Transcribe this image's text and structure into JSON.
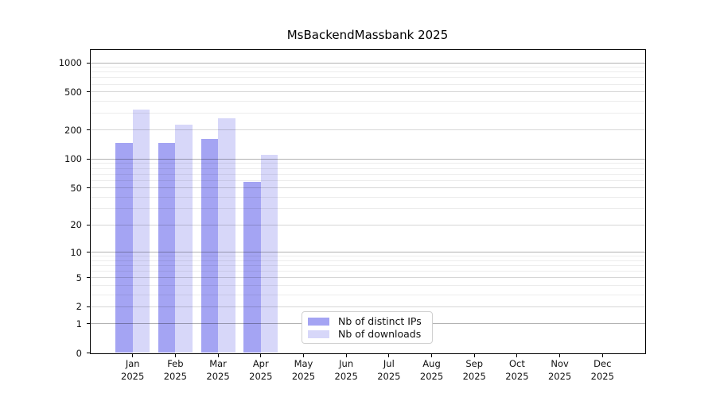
{
  "page": {
    "background": "#ffffff"
  },
  "chart_data": {
    "type": "bar",
    "title": "MsBackendMassbank 2025",
    "categories": [
      "Jan",
      "Feb",
      "Mar",
      "Apr",
      "May",
      "Jun",
      "Jul",
      "Aug",
      "Sep",
      "Oct",
      "Nov",
      "Dec"
    ],
    "category_year": "2025",
    "series": [
      {
        "name": "Nb of distinct IPs",
        "color": "#a4a4f3",
        "values": [
          148,
          148,
          161,
          58,
          0,
          0,
          0,
          0,
          0,
          0,
          0,
          0
        ]
      },
      {
        "name": "Nb of downloads",
        "color": "#d7d7f9",
        "values": [
          325,
          230,
          265,
          110,
          0,
          0,
          0,
          0,
          0,
          0,
          0,
          0
        ]
      }
    ],
    "yticks": [
      1000,
      500,
      200,
      100,
      50,
      20,
      10,
      5,
      2,
      1,
      0
    ],
    "yscale": "log1p",
    "ylim": [
      0,
      1400
    ],
    "grid": true,
    "legend_position": "bottom-center",
    "axis_color": "#000000",
    "grid_major_color": "#b3b3b3",
    "grid_mid_color": "#d9d9d9",
    "grid_minor_color": "#ececec"
  }
}
